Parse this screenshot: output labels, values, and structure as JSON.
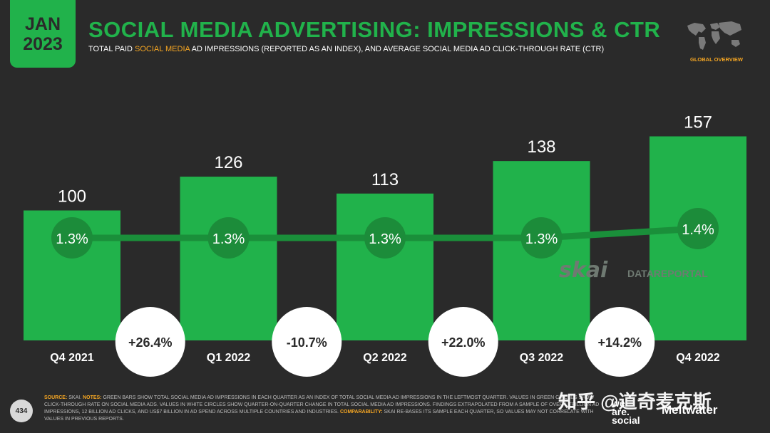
{
  "badge": {
    "month": "JAN",
    "year": "2023"
  },
  "header": {
    "title": "SOCIAL MEDIA ADVERTISING: IMPRESSIONS & CTR",
    "subtitle_pre": "TOTAL PAID ",
    "subtitle_highlight": "SOCIAL MEDIA",
    "subtitle_post": " AD IMPRESSIONS (REPORTED AS AN INDEX), AND AVERAGE SOCIAL MEDIA AD CLICK-THROUGH RATE (CTR)",
    "region_label": "GLOBAL OVERVIEW"
  },
  "chart_data": {
    "type": "bar",
    "categories": [
      "Q4 2021",
      "Q1 2022",
      "Q2 2022",
      "Q3 2022",
      "Q4 2022"
    ],
    "series": [
      {
        "values": [
          100,
          126,
          113,
          138,
          157
        ]
      },
      {
        "values": [
          1.3,
          1.3,
          1.3,
          1.3,
          1.4
        ]
      }
    ],
    "value_labels": [
      "100",
      "126",
      "113",
      "138",
      "157"
    ],
    "ctr_labels": [
      "1.3%",
      "1.3%",
      "1.3%",
      "1.3%",
      "1.4%"
    ],
    "changes": [
      "+26.4%",
      "-10.7%",
      "+22.0%",
      "+14.2%"
    ],
    "ylim": [
      0,
      170
    ],
    "colors": {
      "bar": "#21b24b",
      "line": "#1a8f3a",
      "circle": "#1c8c3a",
      "change_circle": "#ffffff",
      "text": "#ffffff"
    }
  },
  "footer": {
    "page_number": "434",
    "source_key": "SOURCE:",
    "source_text": " SKAI. ",
    "notes_key": "NOTES:",
    "notes_text": " GREEN BARS SHOW TOTAL SOCIAL MEDIA AD IMPRESSIONS IN EACH QUARTER AS AN INDEX OF TOTAL SOCIAL MEDIA AD IMPRESSIONS IN THE LEFTMOST QUARTER. VALUES IN GREEN CIRCLES SHOW CLICK-THROUGH RATE ON SOCIAL MEDIA ADS. VALUES IN WHITE CIRCLES SHOW QUARTER-ON-QUARTER CHANGE IN TOTAL SOCIAL MEDIA AD IMPRESSIONS. FINDINGS EXTRAPOLATED FROM A SAMPLE OF OVER 1 TRILLION AD IMPRESSIONS, 12 BILLION AD CLICKS, AND US$7 BILLION IN AD SPEND ACROSS MULTIPLE COUNTRIES AND INDUSTRIES. ",
    "comparability_key": "COMPARABILITY:",
    "comparability_text": " SKAI RE-BASES ITS SAMPLE EACH QUARTER, SO VALUES MAY NOT CORRELATE WITH VALUES IN PREVIOUS REPORTS."
  },
  "logos": {
    "skai": "skai",
    "datareportal": "DATAREPORTAL",
    "was_line1": "we",
    "was_line2": "are.",
    "was_line3": "social",
    "meltwater": "Meltwater"
  },
  "watermark": "知乎 @道奇麦克斯"
}
